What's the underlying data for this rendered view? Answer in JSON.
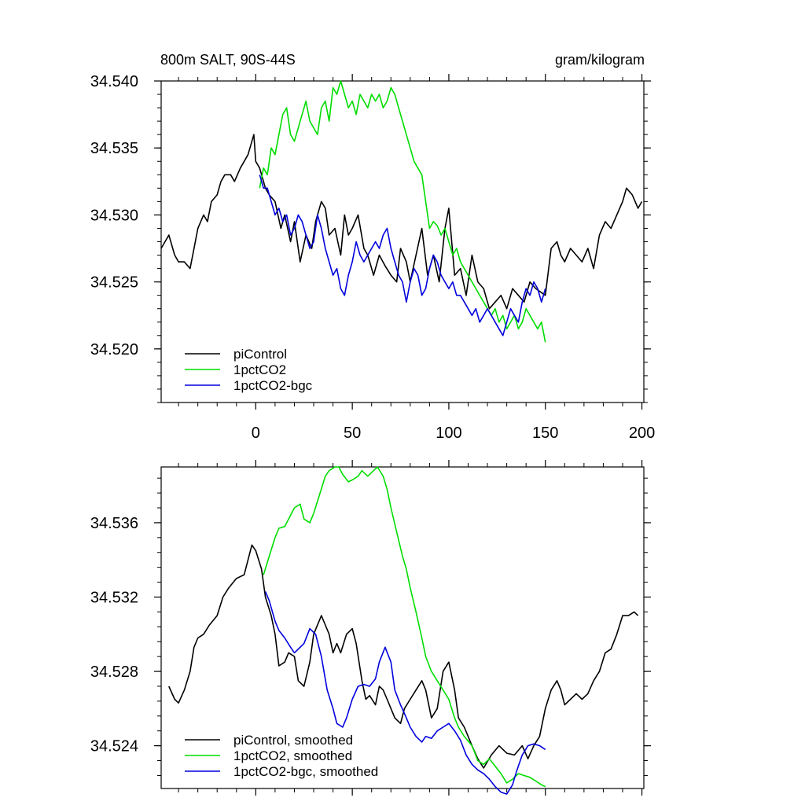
{
  "chart_data": [
    {
      "type": "line",
      "title": "800m SALT, 90S-44S",
      "units": "gram/kilogram",
      "xlim": [
        -49,
        201
      ],
      "ylim": [
        34.516,
        34.54
      ],
      "xticks": [
        0,
        50,
        100,
        150,
        200
      ],
      "xtick_labels": [
        "0",
        "50",
        "100",
        "150",
        "200"
      ],
      "yticks": [
        34.52,
        34.525,
        34.53,
        34.535,
        34.54
      ],
      "ytick_labels": [
        "34.520",
        "34.525",
        "34.530",
        "34.535",
        "34.540"
      ],
      "legend_position": "bottom-left",
      "series": [
        {
          "name": "piControl",
          "color": "#000000",
          "x": [
            -49,
            -45,
            -42,
            -40,
            -37,
            -34,
            -32,
            -30,
            -27,
            -25,
            -23,
            -20,
            -18,
            -16,
            -13,
            -11,
            -8,
            -6,
            -4,
            -1,
            0,
            2,
            5,
            7,
            10,
            13,
            15,
            18,
            20,
            23,
            26,
            29,
            31,
            34,
            36,
            38,
            41,
            44,
            46,
            48,
            50,
            53,
            56,
            58,
            61,
            64,
            67,
            70,
            73,
            75,
            78,
            80,
            83,
            86,
            89,
            92,
            95,
            98,
            100,
            103,
            106,
            109,
            112,
            115,
            118,
            121,
            124,
            127,
            130,
            133,
            136,
            139,
            142,
            145,
            150,
            153,
            156,
            158,
            160,
            163,
            166,
            169,
            172,
            175,
            178,
            181,
            184,
            187,
            190,
            192,
            195,
            198,
            200
          ],
          "y": [
            34.5275,
            34.5285,
            34.527,
            34.5265,
            34.5265,
            34.526,
            34.5275,
            34.529,
            34.53,
            34.5295,
            34.531,
            34.5315,
            34.5325,
            34.533,
            34.533,
            34.5325,
            34.5335,
            34.534,
            34.5345,
            34.536,
            34.534,
            34.5335,
            34.532,
            34.5315,
            34.531,
            34.529,
            34.53,
            34.528,
            34.5295,
            34.5265,
            34.5285,
            34.5275,
            34.5295,
            34.531,
            34.5305,
            34.5285,
            34.529,
            34.527,
            34.53,
            34.5285,
            34.529,
            34.53,
            34.5275,
            34.527,
            34.5255,
            34.527,
            34.5262,
            34.5255,
            34.525,
            34.5275,
            34.5265,
            34.525,
            34.527,
            34.529,
            34.5255,
            34.527,
            34.525,
            34.529,
            34.5305,
            34.5255,
            34.526,
            34.524,
            34.527,
            34.525,
            34.5245,
            34.523,
            34.5235,
            34.524,
            34.523,
            34.5245,
            34.524,
            34.5235,
            34.525,
            34.5245,
            34.524,
            34.5275,
            34.528,
            34.527,
            34.5265,
            34.5275,
            34.527,
            34.5265,
            34.5275,
            34.526,
            34.5285,
            34.5295,
            34.529,
            34.53,
            34.531,
            34.532,
            34.5315,
            34.5305,
            34.531
          ]
        },
        {
          "name": "1pctCO2",
          "color": "#00dd00",
          "x": [
            2,
            4,
            6,
            8,
            10,
            12,
            14,
            16,
            18,
            20,
            22,
            24,
            26,
            28,
            30,
            32,
            34,
            36,
            38,
            40,
            42,
            44,
            46,
            48,
            50,
            52,
            54,
            56,
            58,
            60,
            62,
            64,
            66,
            68,
            70,
            72,
            74,
            76,
            78,
            80,
            82,
            84,
            86,
            88,
            90,
            92,
            94,
            96,
            98,
            100,
            102,
            104,
            106,
            108,
            110,
            112,
            114,
            116,
            118,
            120,
            122,
            124,
            126,
            128,
            130,
            132,
            134,
            136,
            138,
            140,
            142,
            144,
            146,
            148,
            150
          ],
          "y": [
            34.532,
            34.5335,
            34.533,
            34.535,
            34.5345,
            34.536,
            34.5375,
            34.538,
            34.536,
            34.5355,
            34.5365,
            34.5375,
            34.5385,
            34.537,
            34.5365,
            34.536,
            34.538,
            34.5385,
            34.537,
            34.5395,
            34.539,
            34.54,
            34.539,
            34.538,
            34.5385,
            34.5375,
            34.539,
            34.5385,
            34.538,
            34.539,
            34.5385,
            34.539,
            34.538,
            34.5385,
            34.5395,
            34.539,
            34.538,
            34.537,
            34.536,
            34.535,
            34.534,
            34.5335,
            34.533,
            34.531,
            34.529,
            34.5295,
            34.5292,
            34.5285,
            34.529,
            34.528,
            34.527,
            34.5275,
            34.5265,
            34.526,
            34.5255,
            34.525,
            34.5245,
            34.524,
            34.5235,
            34.523,
            34.5225,
            34.523,
            34.522,
            34.5225,
            34.5215,
            34.522,
            34.5225,
            34.5215,
            34.522,
            34.523,
            34.5225,
            34.522,
            34.5215,
            34.522,
            34.5205
          ]
        },
        {
          "name": "1pctCO2-bgc",
          "color": "#0000dd",
          "x": [
            2,
            4,
            6,
            8,
            10,
            12,
            14,
            16,
            18,
            20,
            22,
            24,
            26,
            28,
            30,
            32,
            34,
            36,
            38,
            40,
            42,
            44,
            46,
            48,
            50,
            52,
            54,
            56,
            58,
            60,
            62,
            64,
            66,
            68,
            70,
            72,
            74,
            76,
            78,
            80,
            82,
            84,
            86,
            88,
            90,
            92,
            94,
            96,
            98,
            100,
            102,
            104,
            106,
            108,
            110,
            112,
            114,
            116,
            118,
            120,
            122,
            124,
            126,
            128,
            130,
            132,
            134,
            136,
            138,
            140,
            142,
            144,
            146,
            148,
            150
          ],
          "y": [
            34.533,
            34.532,
            34.532,
            34.531,
            34.53,
            34.5305,
            34.5295,
            34.53,
            34.5285,
            34.529,
            34.53,
            34.5295,
            34.5285,
            34.5275,
            34.528,
            34.53,
            34.529,
            34.5275,
            34.5265,
            34.5255,
            34.526,
            34.5245,
            34.524,
            34.5255,
            34.5265,
            34.528,
            34.527,
            34.5265,
            34.527,
            34.5275,
            34.528,
            34.5275,
            34.5285,
            34.529,
            34.5275,
            34.5265,
            34.5255,
            34.525,
            34.5235,
            34.525,
            34.526,
            34.5255,
            34.524,
            34.5245,
            34.526,
            34.527,
            34.5265,
            34.5255,
            34.525,
            34.5245,
            34.525,
            34.524,
            34.524,
            34.5235,
            34.523,
            34.5225,
            34.523,
            34.522,
            34.5225,
            34.523,
            34.5225,
            34.522,
            34.5215,
            34.521,
            34.522,
            34.523,
            34.5225,
            34.522,
            34.5235,
            34.5245,
            34.524,
            34.525,
            34.5245,
            34.5235,
            34.5245
          ]
        }
      ]
    },
    {
      "type": "line",
      "xlim": [
        -49,
        201
      ],
      "ylim": [
        34.5217,
        34.539
      ],
      "xticks": [
        0,
        50,
        100,
        150,
        200
      ],
      "yticks": [
        34.524,
        34.528,
        34.532,
        34.536
      ],
      "ytick_labels": [
        "34.524",
        "34.528",
        "34.532",
        "34.536"
      ],
      "legend_position": "bottom-left",
      "series": [
        {
          "name": "piControl, smoothed",
          "color": "#000000",
          "x": [
            -45,
            -42,
            -40,
            -37,
            -34,
            -32,
            -30,
            -27,
            -24,
            -20,
            -17,
            -14,
            -10,
            -6,
            -4,
            -2,
            0,
            3,
            5,
            8,
            10,
            12,
            15,
            17,
            20,
            22,
            25,
            28,
            30,
            34,
            36,
            38,
            40,
            42,
            44,
            47,
            50,
            52,
            55,
            57,
            59,
            62,
            64,
            66,
            68,
            70,
            72,
            75,
            77,
            80,
            83,
            86,
            88,
            91,
            94,
            97,
            100,
            103,
            105,
            108,
            112,
            115,
            118,
            122,
            126,
            130,
            134,
            138,
            141,
            144,
            147,
            150,
            153,
            156,
            158,
            160,
            163,
            166,
            169,
            172,
            175,
            178,
            181,
            184,
            187,
            190,
            193,
            196,
            198
          ],
          "y": [
            34.5272,
            34.5265,
            34.5263,
            34.527,
            34.528,
            34.5293,
            34.5298,
            34.53,
            34.5305,
            34.531,
            34.532,
            34.5325,
            34.533,
            34.5332,
            34.534,
            34.5348,
            34.5345,
            34.5335,
            34.532,
            34.531,
            34.53,
            34.5283,
            34.5285,
            34.529,
            34.5288,
            34.5275,
            34.5272,
            34.5285,
            34.53,
            34.531,
            34.5305,
            34.53,
            34.529,
            34.5295,
            34.529,
            34.53,
            34.5303,
            34.5295,
            34.5275,
            34.5265,
            34.5267,
            34.5262,
            34.5272,
            34.527,
            34.5265,
            34.526,
            34.5255,
            34.5252,
            34.526,
            34.5265,
            34.527,
            34.5275,
            34.527,
            34.5255,
            34.526,
            34.528,
            34.5285,
            34.527,
            34.5255,
            34.525,
            34.524,
            34.5233,
            34.5228,
            34.5235,
            34.524,
            34.5236,
            34.5235,
            34.524,
            34.5233,
            34.524,
            34.5245,
            34.526,
            34.527,
            34.5275,
            34.527,
            34.5262,
            34.5265,
            34.5268,
            34.5265,
            34.5268,
            34.5275,
            34.528,
            34.529,
            34.5292,
            34.53,
            34.531,
            34.531,
            34.5312,
            34.531
          ]
        },
        {
          "name": "1pctCO2, smoothed",
          "color": "#00dd00",
          "x": [
            4,
            7,
            10,
            12,
            15,
            18,
            20,
            23,
            25,
            28,
            30,
            33,
            36,
            38,
            41,
            43,
            45,
            48,
            50,
            53,
            55,
            58,
            61,
            63,
            66,
            68,
            70,
            73,
            76,
            78,
            80,
            83,
            86,
            88,
            91,
            94,
            97,
            100,
            103,
            105,
            108,
            112,
            115,
            118,
            121,
            124,
            127,
            130,
            133,
            136,
            139,
            142,
            145,
            148,
            150
          ],
          "y": [
            34.5332,
            34.5342,
            34.5352,
            34.5357,
            34.5358,
            34.5364,
            34.5368,
            34.537,
            34.5362,
            34.536,
            34.5365,
            34.5375,
            34.5385,
            34.5388,
            34.539,
            34.539,
            34.5386,
            34.5382,
            34.5383,
            34.5385,
            34.5388,
            34.5385,
            34.5388,
            34.539,
            34.5385,
            34.5378,
            34.5368,
            34.5355,
            34.5342,
            34.5335,
            34.5325,
            34.5312,
            34.5298,
            34.5288,
            34.528,
            34.5275,
            34.527,
            34.5265,
            34.5255,
            34.525,
            34.5245,
            34.524,
            34.5232,
            34.523,
            34.5233,
            34.5229,
            34.5225,
            34.522,
            34.5222,
            34.5225,
            34.5224,
            34.5223,
            34.5221,
            34.5219,
            34.5218
          ]
        },
        {
          "name": "1pctCO2-bgc, smoothed",
          "color": "#0000dd",
          "x": [
            5,
            7,
            10,
            12,
            15,
            18,
            20,
            22,
            25,
            28,
            31,
            34,
            37,
            40,
            42,
            45,
            47,
            50,
            53,
            56,
            59,
            62,
            64,
            67,
            70,
            72,
            75,
            78,
            80,
            83,
            86,
            88,
            91,
            94,
            97,
            100,
            103,
            106,
            109,
            112,
            115,
            118,
            121,
            124,
            127,
            130,
            133,
            135,
            138,
            141,
            144,
            147,
            150
          ],
          "y": [
            34.5323,
            34.5318,
            34.5307,
            34.5302,
            34.5298,
            34.5293,
            34.529,
            34.5292,
            34.5295,
            34.5303,
            34.53,
            34.5288,
            34.527,
            34.526,
            34.5252,
            34.525,
            34.5255,
            34.5265,
            34.5272,
            34.5273,
            34.5272,
            34.5276,
            34.5285,
            34.5293,
            34.5285,
            34.527,
            34.5262,
            34.5255,
            34.525,
            34.5245,
            34.5242,
            34.5245,
            34.5244,
            34.5248,
            34.525,
            34.5252,
            34.5248,
            34.5243,
            34.5235,
            34.523,
            34.5227,
            34.5225,
            34.5222,
            34.5218,
            34.5215,
            34.5214,
            34.5219,
            34.5226,
            34.5235,
            34.524,
            34.5241,
            34.524,
            34.5238
          ]
        }
      ]
    }
  ]
}
